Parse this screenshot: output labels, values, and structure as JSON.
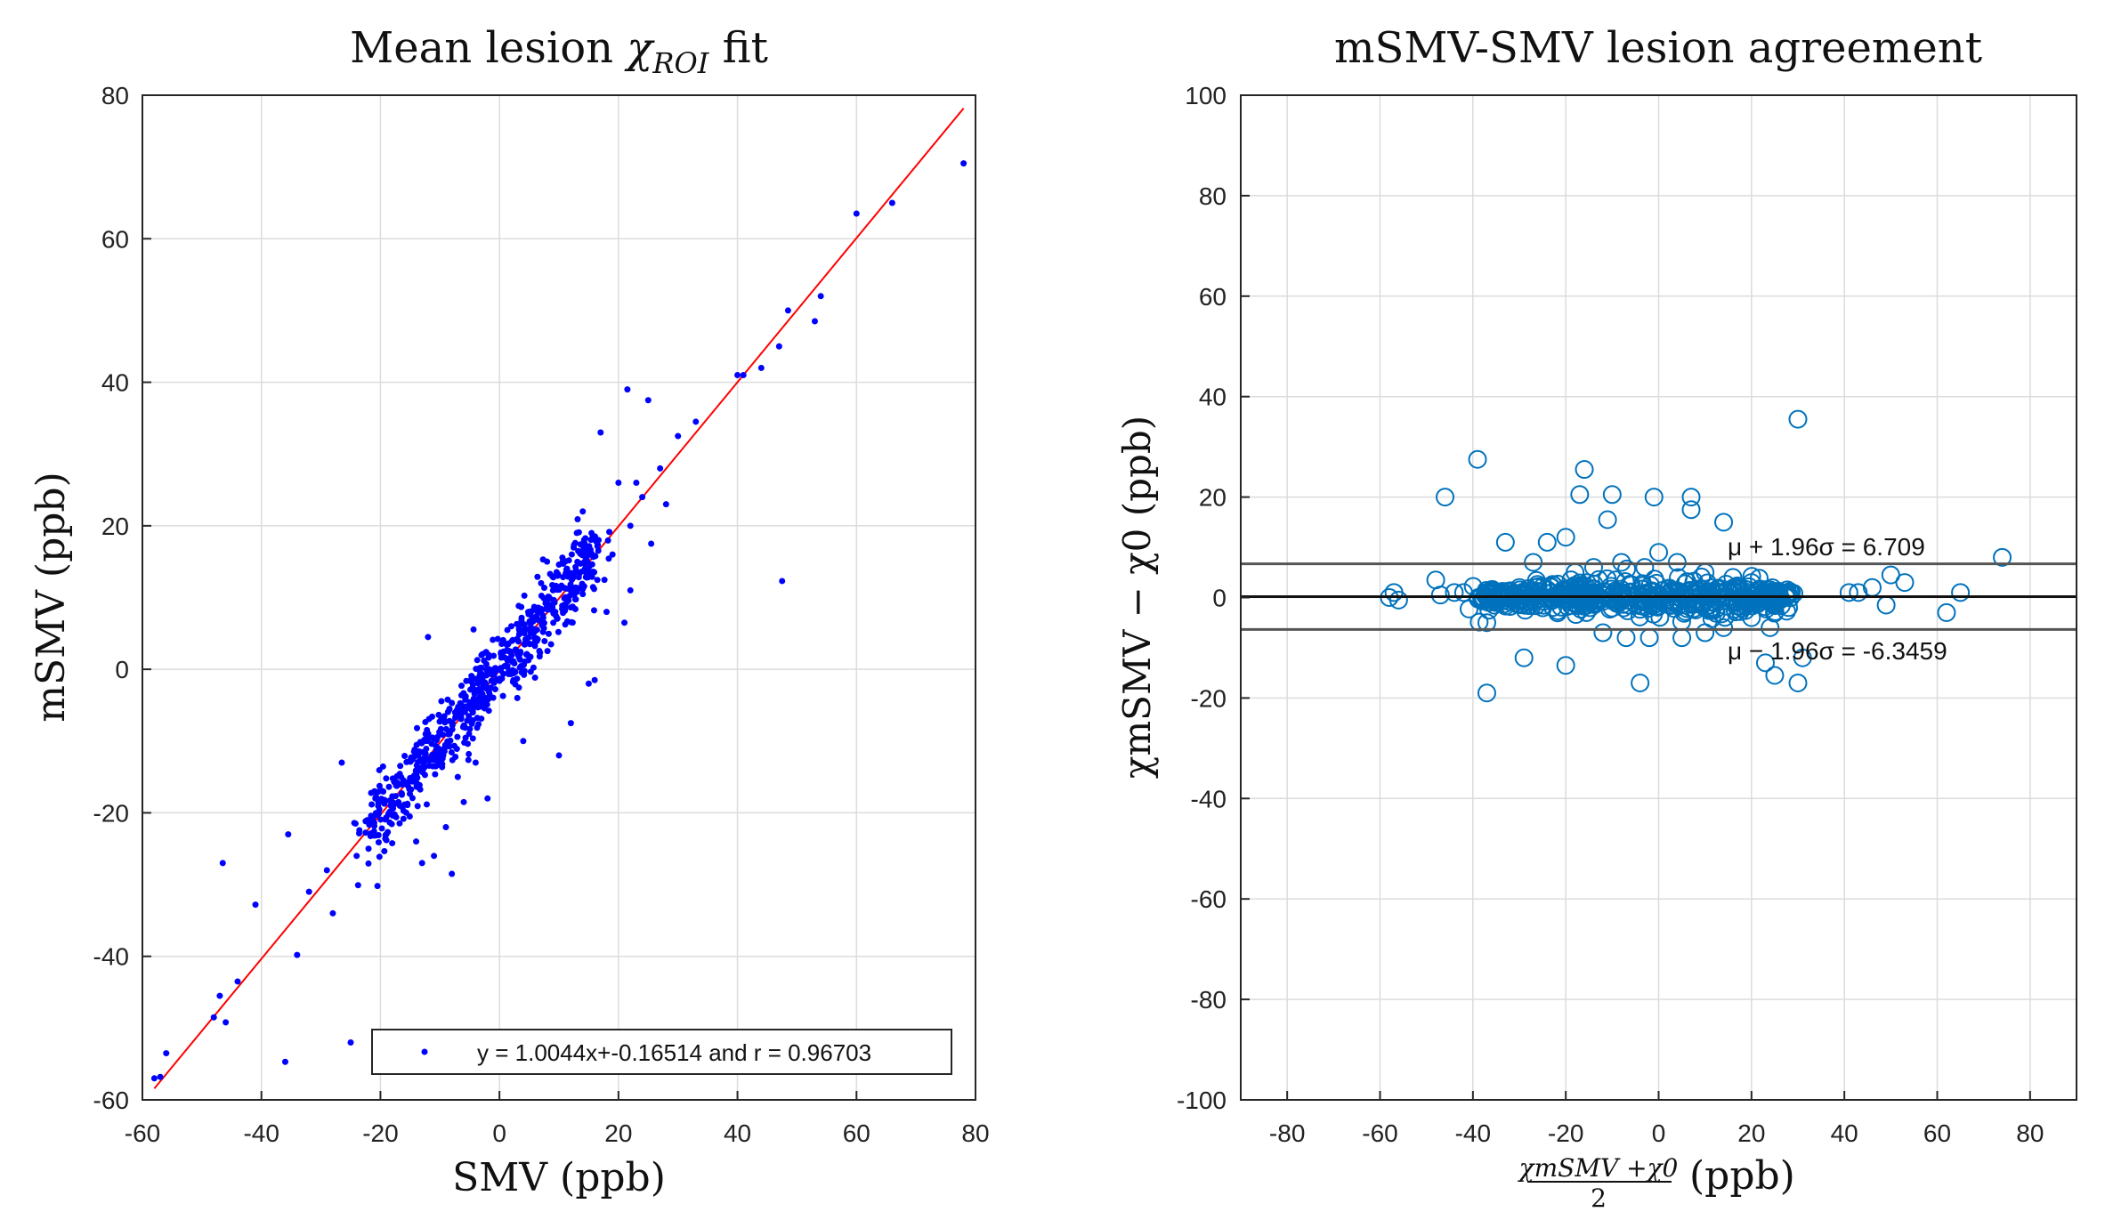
{
  "chart_data": [
    {
      "type": "scatter",
      "title": "Mean lesion χROI fit",
      "title_parts": {
        "main": "Mean lesion ",
        "symbol": "χ",
        "subscript": "ROI",
        "tail": " fit"
      },
      "xlabel": "SMV (ppb)",
      "ylabel": "mSMV (ppb)",
      "xlim": [
        -60,
        80
      ],
      "ylim": [
        -60,
        80
      ],
      "xticks": [
        "-60",
        "-40",
        "-20",
        "0",
        "20",
        "40",
        "60",
        "80"
      ],
      "yticks": [
        "-60",
        "-40",
        "-20",
        "0",
        "20",
        "40",
        "60",
        "80"
      ],
      "grid": true,
      "legend_position": "bottom-right",
      "legend_entry": "y = 1.0044x+-0.16514 and r = 0.96703",
      "fit": {
        "slope": 1.0044,
        "intercept": -0.16514,
        "r": 0.96703,
        "x_range": [
          -58,
          78
        ]
      },
      "colors": {
        "points": "#0000ff",
        "fit_line": "#ff0000"
      },
      "series": [
        {
          "name": "y = 1.0044x+-0.16514 and r = 0.96703",
          "points": [
            [
              -58,
              -57
            ],
            [
              -56,
              -53.5
            ],
            [
              -57,
              -56.8
            ],
            [
              -48,
              -48.5
            ],
            [
              -47,
              -45.5
            ],
            [
              -46,
              -49.2
            ],
            [
              -44,
              -43.5
            ],
            [
              -46.5,
              -27
            ],
            [
              -41,
              -32.8
            ],
            [
              -36,
              -54.7
            ],
            [
              -35.5,
              -23
            ],
            [
              -34,
              -39.8
            ],
            [
              -32,
              -31
            ],
            [
              -29,
              -28
            ],
            [
              -28,
              -34
            ],
            [
              -26.5,
              -13
            ],
            [
              -25,
              -52
            ],
            [
              -24,
              -26
            ],
            [
              -22,
              -25
            ],
            [
              -21,
              -17
            ],
            [
              -20.5,
              -30.2
            ],
            [
              -19,
              -23
            ],
            [
              -14,
              -24
            ],
            [
              -13,
              -27
            ],
            [
              -12,
              4.5
            ],
            [
              -8,
              -28.5
            ],
            [
              -7,
              -15
            ],
            [
              -6,
              -18.5
            ],
            [
              -4,
              -13
            ],
            [
              -2,
              -18
            ],
            [
              -11,
              -26
            ],
            [
              -9,
              -22
            ],
            [
              4,
              -10
            ],
            [
              10,
              -12
            ],
            [
              12,
              -7.5
            ],
            [
              15,
              -2
            ],
            [
              16,
              -1.5
            ],
            [
              17,
              33
            ],
            [
              18,
              8
            ],
            [
              19,
              16
            ],
            [
              20,
              26
            ],
            [
              21,
              6.5
            ],
            [
              21.5,
              39
            ],
            [
              22,
              11
            ],
            [
              24,
              24
            ],
            [
              25,
              37.5
            ],
            [
              25.5,
              17.5
            ],
            [
              27,
              28
            ],
            [
              28,
              23
            ],
            [
              30,
              32.5
            ],
            [
              33,
              34.5
            ],
            [
              40,
              41
            ],
            [
              41,
              41
            ],
            [
              44,
              42
            ],
            [
              47,
              45
            ],
            [
              47.5,
              12.3
            ],
            [
              48.5,
              50
            ],
            [
              53,
              48.5
            ],
            [
              54,
              52
            ],
            [
              60,
              63.5
            ],
            [
              66,
              65
            ],
            [
              78,
              70.5
            ],
            [
              2,
              6
            ],
            [
              3,
              -4
            ],
            [
              5,
              8
            ],
            [
              7,
              12
            ],
            [
              8,
              15
            ],
            [
              9,
              11
            ],
            [
              13,
              19
            ],
            [
              14,
              22
            ],
            [
              22,
              20
            ],
            [
              23,
              26
            ]
          ],
          "cluster_note": "dense cloud of several hundred points along y ≈ x between x ≈ -20 and x ≈ 15",
          "cluster_centers": [
            [
              -20,
              -20.5
            ],
            [
              -15,
              -15.5
            ],
            [
              -10,
              -10
            ],
            [
              -5,
              -5
            ],
            [
              0,
              0
            ],
            [
              5,
              4.5
            ],
            [
              10,
              10
            ],
            [
              15,
              15
            ]
          ]
        }
      ]
    },
    {
      "type": "scatter",
      "title": "mSMV-SMV lesion agreement",
      "xlabel": "(χmSMV + χ0) / 2 (ppb)",
      "xlabel_parts": {
        "num": "χmSMV +χ0",
        "den": "2",
        "unit": "(ppb)"
      },
      "ylabel": "χmSMV − χ0 (ppb)",
      "xlim": [
        -90,
        90
      ],
      "ylim": [
        -100,
        100
      ],
      "xticks": [
        "-80",
        "-60",
        "-40",
        "-20",
        "0",
        "20",
        "40",
        "60",
        "80"
      ],
      "yticks": [
        "-100",
        "-80",
        "-60",
        "-40",
        "-20",
        "0",
        "20",
        "40",
        "60",
        "80",
        "100"
      ],
      "grid": true,
      "colors": {
        "points": "#0072bd",
        "lines": "#555555",
        "mean_line": "#111111"
      },
      "reference_lines": {
        "mean": 0.18,
        "upper": 6.709,
        "lower": -6.3459
      },
      "annotations": [
        {
          "text": "μ + 1.96σ = 6.709",
          "x": 15,
          "y": 9
        },
        {
          "text": "μ − 1.96σ = -6.3459",
          "x": 15,
          "y": -11
        }
      ],
      "series": [
        {
          "points": [
            [
              30,
              35.5
            ],
            [
              -39,
              27.5
            ],
            [
              -16,
              25.5
            ],
            [
              -46,
              20
            ],
            [
              -17,
              20.5
            ],
            [
              -10,
              20.5
            ],
            [
              -1,
              20
            ],
            [
              7,
              20
            ],
            [
              7,
              17.5
            ],
            [
              -11,
              15.5
            ],
            [
              14,
              15
            ],
            [
              -20,
              12
            ],
            [
              -24,
              11
            ],
            [
              -33,
              11
            ],
            [
              74,
              8
            ],
            [
              50,
              4.5
            ],
            [
              53,
              3
            ],
            [
              -48,
              3.5
            ],
            [
              -57,
              1
            ],
            [
              -58,
              0
            ],
            [
              -56,
              -0.5
            ],
            [
              -47,
              0.5
            ],
            [
              -44,
              1
            ],
            [
              -42,
              1
            ],
            [
              -37,
              -5
            ],
            [
              -29,
              -12
            ],
            [
              -20,
              -13.5
            ],
            [
              -37,
              -19
            ],
            [
              -4,
              -17
            ],
            [
              23,
              -13
            ],
            [
              25,
              -15.5
            ],
            [
              30,
              -17
            ],
            [
              31,
              -12
            ],
            [
              41,
              1
            ],
            [
              43,
              1
            ],
            [
              46,
              2
            ],
            [
              49,
              -1.5
            ],
            [
              62,
              -3
            ],
            [
              65,
              1
            ],
            [
              28,
              -2
            ],
            [
              20,
              -4
            ],
            [
              24,
              -6
            ],
            [
              -12,
              -7
            ],
            [
              -7,
              -8
            ],
            [
              -2,
              -8
            ],
            [
              5,
              -8
            ],
            [
              10,
              -7
            ],
            [
              14,
              -6
            ],
            [
              -18,
              5
            ],
            [
              -14,
              6
            ],
            [
              -8,
              7
            ],
            [
              -3,
              6
            ],
            [
              0,
              9
            ],
            [
              4,
              7
            ],
            [
              10,
              5
            ],
            [
              16,
              4
            ],
            [
              20,
              3
            ],
            [
              -30,
              2
            ],
            [
              -27,
              7
            ],
            [
              -35,
              -1
            ]
          ],
          "cluster_note": "dense cloud of points with differences mostly between -5 and 5 ppb for means between -38 and 28 ppb",
          "cluster_centers": [
            [
              -30,
              0
            ],
            [
              -20,
              0.5
            ],
            [
              -10,
              0
            ],
            [
              0,
              -0.5
            ],
            [
              10,
              0.5
            ],
            [
              20,
              0
            ]
          ]
        }
      ]
    }
  ]
}
